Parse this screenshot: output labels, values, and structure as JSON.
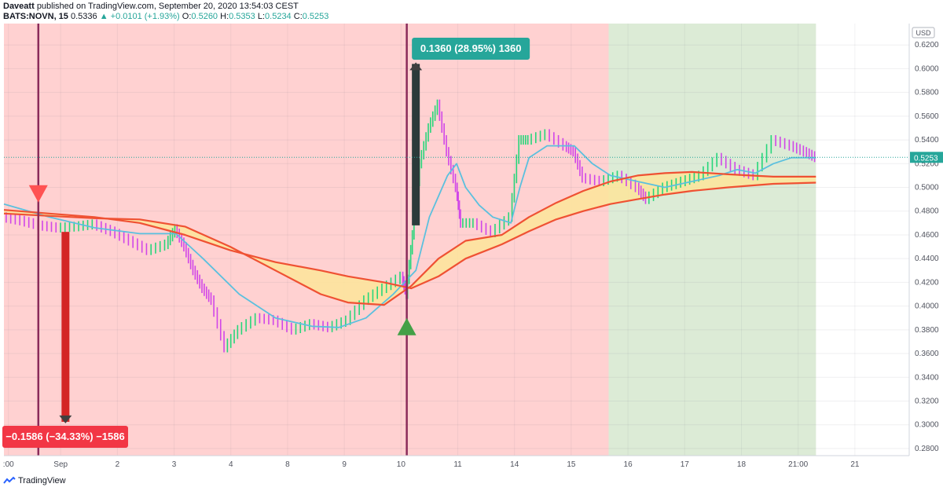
{
  "header": {
    "author": "Daveatt",
    "published": "published on TradingView.com, September 20, 2020 13:54:03 CEST",
    "symbol": "BATS:NOVN, 15",
    "last": "0.5336",
    "change": "▲ +0.0101 (+1.93%)",
    "o_label": "O:",
    "o_value": "0.5260",
    "h_label": "H:",
    "h_value": "0.5353",
    "l_label": "L:",
    "l_value": "0.5234",
    "c_label": "C:",
    "c_value": "0.5253"
  },
  "footer": {
    "brand": "TradingView"
  },
  "colors": {
    "bear_zone": "#ffd1d1",
    "bull_zone": "#dcebd6",
    "ema_fill": "#fde59a",
    "ema_line": "#ef5133",
    "signal_line": "#5bc0de",
    "up_bar": "#26d67a",
    "down_bar": "#d146e8",
    "marker_line": "#8a2b5a",
    "short_arrow": "#d32525",
    "long_arrow": "#26a69a",
    "price_label": "#26a69a"
  },
  "chart_data": {
    "type": "line",
    "y_axis": {
      "currency": "USD",
      "ticks": [
        "0.6200",
        "0.6000",
        "0.5800",
        "0.5600",
        "0.5400",
        "0.5200",
        "0.5000",
        "0.4800",
        "0.4600",
        "0.4400",
        "0.4200",
        "0.4000",
        "0.3800",
        "0.3600",
        "0.3400",
        "0.3200",
        "0.3000",
        "0.2800"
      ],
      "ylim": [
        0.274,
        0.638
      ],
      "last_price": "0.5253"
    },
    "x_axis": {
      "ticks": [
        ":00",
        "Sep",
        "2",
        "3",
        "4",
        "8",
        "9",
        "10",
        "11",
        "14",
        "15",
        "16",
        "17",
        "18",
        "21:00",
        "21"
      ]
    },
    "zones": [
      {
        "name": "bear",
        "from": 0.0,
        "to": 0.668
      },
      {
        "name": "bull",
        "from": 0.668,
        "to": 0.897
      }
    ],
    "series": [
      {
        "kind": "price",
        "points": [
          [
            0,
            0.475
          ],
          [
            0.02,
            0.472
          ],
          [
            0.04,
            0.468
          ],
          [
            0.06,
            0.466
          ],
          [
            0.08,
            0.467
          ],
          [
            0.1,
            0.469
          ],
          [
            0.12,
            0.463
          ],
          [
            0.14,
            0.455
          ],
          [
            0.16,
            0.447
          ],
          [
            0.18,
            0.452
          ],
          [
            0.19,
            0.465
          ],
          [
            0.2,
            0.45
          ],
          [
            0.21,
            0.43
          ],
          [
            0.22,
            0.415
          ],
          [
            0.23,
            0.405
          ],
          [
            0.245,
            0.365
          ],
          [
            0.26,
            0.38
          ],
          [
            0.28,
            0.39
          ],
          [
            0.3,
            0.388
          ],
          [
            0.32,
            0.38
          ],
          [
            0.34,
            0.385
          ],
          [
            0.36,
            0.382
          ],
          [
            0.38,
            0.388
          ],
          [
            0.4,
            0.405
          ],
          [
            0.42,
            0.415
          ],
          [
            0.44,
            0.425
          ],
          [
            0.445,
            0.41
          ],
          [
            0.452,
            0.46
          ],
          [
            0.46,
            0.52
          ],
          [
            0.47,
            0.55
          ],
          [
            0.48,
            0.57
          ],
          [
            0.49,
            0.53
          ],
          [
            0.5,
            0.5
          ],
          [
            0.505,
            0.47
          ],
          [
            0.52,
            0.47
          ],
          [
            0.54,
            0.462
          ],
          [
            0.56,
            0.475
          ],
          [
            0.57,
            0.54
          ],
          [
            0.58,
            0.54
          ],
          [
            0.6,
            0.545
          ],
          [
            0.62,
            0.535
          ],
          [
            0.63,
            0.53
          ],
          [
            0.64,
            0.508
          ],
          [
            0.66,
            0.505
          ],
          [
            0.68,
            0.51
          ],
          [
            0.7,
            0.5
          ],
          [
            0.71,
            0.49
          ],
          [
            0.73,
            0.5
          ],
          [
            0.75,
            0.505
          ],
          [
            0.77,
            0.51
          ],
          [
            0.79,
            0.525
          ],
          [
            0.81,
            0.515
          ],
          [
            0.83,
            0.51
          ],
          [
            0.85,
            0.54
          ],
          [
            0.87,
            0.535
          ],
          [
            0.885,
            0.53
          ],
          [
            0.897,
            0.5253
          ]
        ]
      },
      {
        "kind": "signal",
        "points": [
          [
            0,
            0.486
          ],
          [
            0.05,
            0.475
          ],
          [
            0.1,
            0.466
          ],
          [
            0.15,
            0.461
          ],
          [
            0.19,
            0.461
          ],
          [
            0.22,
            0.44
          ],
          [
            0.26,
            0.41
          ],
          [
            0.3,
            0.39
          ],
          [
            0.34,
            0.383
          ],
          [
            0.37,
            0.382
          ],
          [
            0.4,
            0.39
          ],
          [
            0.43,
            0.41
          ],
          [
            0.455,
            0.43
          ],
          [
            0.47,
            0.475
          ],
          [
            0.49,
            0.51
          ],
          [
            0.5,
            0.52
          ],
          [
            0.51,
            0.5
          ],
          [
            0.525,
            0.485
          ],
          [
            0.54,
            0.475
          ],
          [
            0.56,
            0.47
          ],
          [
            0.57,
            0.5
          ],
          [
            0.58,
            0.525
          ],
          [
            0.6,
            0.535
          ],
          [
            0.63,
            0.535
          ],
          [
            0.65,
            0.52
          ],
          [
            0.67,
            0.51
          ],
          [
            0.7,
            0.505
          ],
          [
            0.73,
            0.5
          ],
          [
            0.76,
            0.505
          ],
          [
            0.79,
            0.51
          ],
          [
            0.81,
            0.515
          ],
          [
            0.83,
            0.512
          ],
          [
            0.85,
            0.52
          ],
          [
            0.87,
            0.525
          ],
          [
            0.897,
            0.525
          ]
        ]
      },
      {
        "kind": "ema_fast",
        "points": [
          [
            0,
            0.478
          ],
          [
            0.05,
            0.476
          ],
          [
            0.1,
            0.474
          ],
          [
            0.15,
            0.473
          ],
          [
            0.2,
            0.467
          ],
          [
            0.25,
            0.45
          ],
          [
            0.3,
            0.43
          ],
          [
            0.35,
            0.41
          ],
          [
            0.38,
            0.403
          ],
          [
            0.42,
            0.401
          ],
          [
            0.45,
            0.417
          ],
          [
            0.48,
            0.44
          ],
          [
            0.51,
            0.455
          ],
          [
            0.55,
            0.46
          ],
          [
            0.58,
            0.475
          ],
          [
            0.61,
            0.487
          ],
          [
            0.64,
            0.497
          ],
          [
            0.67,
            0.505
          ],
          [
            0.7,
            0.51
          ],
          [
            0.73,
            0.512
          ],
          [
            0.76,
            0.513
          ],
          [
            0.8,
            0.511
          ],
          [
            0.85,
            0.509
          ],
          [
            0.897,
            0.509
          ]
        ]
      },
      {
        "kind": "ema_slow",
        "points": [
          [
            0,
            0.481
          ],
          [
            0.05,
            0.478
          ],
          [
            0.1,
            0.475
          ],
          [
            0.15,
            0.47
          ],
          [
            0.2,
            0.46
          ],
          [
            0.25,
            0.447
          ],
          [
            0.3,
            0.437
          ],
          [
            0.35,
            0.43
          ],
          [
            0.38,
            0.425
          ],
          [
            0.42,
            0.42
          ],
          [
            0.45,
            0.415
          ],
          [
            0.48,
            0.425
          ],
          [
            0.51,
            0.44
          ],
          [
            0.55,
            0.452
          ],
          [
            0.58,
            0.463
          ],
          [
            0.61,
            0.473
          ],
          [
            0.64,
            0.48
          ],
          [
            0.67,
            0.486
          ],
          [
            0.7,
            0.49
          ],
          [
            0.73,
            0.494
          ],
          [
            0.76,
            0.497
          ],
          [
            0.8,
            0.5
          ],
          [
            0.85,
            0.503
          ],
          [
            0.897,
            0.504
          ]
        ]
      }
    ],
    "signals": [
      {
        "type": "short",
        "at": 0.038,
        "entry": 0.482
      },
      {
        "type": "long",
        "at": 0.445,
        "entry": 0.392
      }
    ],
    "annotations": [
      {
        "kind": "measure-down",
        "label": "−0.1586 (−34.33%) −1586",
        "from_price": 0.4625,
        "to_price": 0.3025,
        "at": 0.068
      },
      {
        "kind": "measure-up",
        "label": "0.1360 (28.95%) 1360",
        "from_price": 0.468,
        "to_price": 0.604,
        "at": 0.455
      }
    ]
  }
}
